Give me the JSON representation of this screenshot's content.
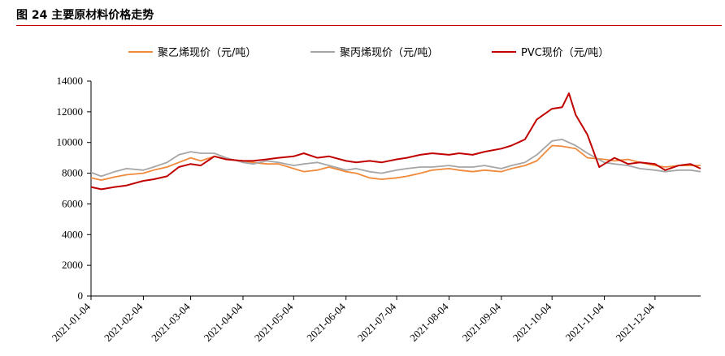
{
  "figure": {
    "title": "图 24 主要原材料价格走势"
  },
  "chart_data": {
    "type": "line",
    "title": "",
    "xlabel": "",
    "ylabel": "",
    "ylim": [
      0,
      14000
    ],
    "yticks": [
      0,
      2000,
      4000,
      6000,
      8000,
      10000,
      12000,
      14000
    ],
    "xlim": [
      "2021-01-04",
      "2021-12-31"
    ],
    "xticks": [
      "2021-01-04",
      "2021-02-04",
      "2021-03-04",
      "2021-04-04",
      "2021-05-04",
      "2021-06-04",
      "2021-07-04",
      "2021-08-04",
      "2021-09-04",
      "2021-10-04",
      "2021-11-04",
      "2021-12-04"
    ],
    "grid": false,
    "legend_position": "top",
    "series": [
      {
        "name": "聚乙烯现价（元/吨）",
        "color": "#f08a3c",
        "points": [
          [
            "2021-01-04",
            7700
          ],
          [
            "2021-01-10",
            7550
          ],
          [
            "2021-01-18",
            7750
          ],
          [
            "2021-01-25",
            7900
          ],
          [
            "2021-02-04",
            8000
          ],
          [
            "2021-02-10",
            8200
          ],
          [
            "2021-02-18",
            8400
          ],
          [
            "2021-02-25",
            8700
          ],
          [
            "2021-03-04",
            9000
          ],
          [
            "2021-03-10",
            8800
          ],
          [
            "2021-03-18",
            9100
          ],
          [
            "2021-03-25",
            8900
          ],
          [
            "2021-04-04",
            8800
          ],
          [
            "2021-04-10",
            8700
          ],
          [
            "2021-04-18",
            8600
          ],
          [
            "2021-04-25",
            8600
          ],
          [
            "2021-05-04",
            8300
          ],
          [
            "2021-05-10",
            8100
          ],
          [
            "2021-05-18",
            8200
          ],
          [
            "2021-05-25",
            8400
          ],
          [
            "2021-06-04",
            8100
          ],
          [
            "2021-06-10",
            8000
          ],
          [
            "2021-06-18",
            7700
          ],
          [
            "2021-06-25",
            7600
          ],
          [
            "2021-07-04",
            7700
          ],
          [
            "2021-07-10",
            7800
          ],
          [
            "2021-07-18",
            8000
          ],
          [
            "2021-07-25",
            8200
          ],
          [
            "2021-08-04",
            8300
          ],
          [
            "2021-08-10",
            8200
          ],
          [
            "2021-08-18",
            8100
          ],
          [
            "2021-08-25",
            8200
          ],
          [
            "2021-09-04",
            8100
          ],
          [
            "2021-09-10",
            8300
          ],
          [
            "2021-09-18",
            8500
          ],
          [
            "2021-09-25",
            8800
          ],
          [
            "2021-10-04",
            9800
          ],
          [
            "2021-10-10",
            9750
          ],
          [
            "2021-10-18",
            9600
          ],
          [
            "2021-10-25",
            9000
          ],
          [
            "2021-11-04",
            8900
          ],
          [
            "2021-11-10",
            8800
          ],
          [
            "2021-11-18",
            8900
          ],
          [
            "2021-11-25",
            8700
          ],
          [
            "2021-12-04",
            8500
          ],
          [
            "2021-12-10",
            8400
          ],
          [
            "2021-12-18",
            8500
          ],
          [
            "2021-12-25",
            8500
          ],
          [
            "2021-12-31",
            8500
          ]
        ]
      },
      {
        "name": "聚丙烯现价（元/吨）",
        "color": "#a6a6a6",
        "points": [
          [
            "2021-01-04",
            8050
          ],
          [
            "2021-01-10",
            7800
          ],
          [
            "2021-01-18",
            8100
          ],
          [
            "2021-01-25",
            8300
          ],
          [
            "2021-02-04",
            8200
          ],
          [
            "2021-02-10",
            8400
          ],
          [
            "2021-02-18",
            8700
          ],
          [
            "2021-02-25",
            9200
          ],
          [
            "2021-03-04",
            9400
          ],
          [
            "2021-03-10",
            9300
          ],
          [
            "2021-03-18",
            9300
          ],
          [
            "2021-03-25",
            9000
          ],
          [
            "2021-04-04",
            8700
          ],
          [
            "2021-04-10",
            8600
          ],
          [
            "2021-04-18",
            8800
          ],
          [
            "2021-04-25",
            8700
          ],
          [
            "2021-05-04",
            8500
          ],
          [
            "2021-05-10",
            8600
          ],
          [
            "2021-05-18",
            8700
          ],
          [
            "2021-05-25",
            8500
          ],
          [
            "2021-06-04",
            8200
          ],
          [
            "2021-06-10",
            8300
          ],
          [
            "2021-06-18",
            8100
          ],
          [
            "2021-06-25",
            8000
          ],
          [
            "2021-07-04",
            8200
          ],
          [
            "2021-07-10",
            8300
          ],
          [
            "2021-07-18",
            8400
          ],
          [
            "2021-07-25",
            8400
          ],
          [
            "2021-08-04",
            8500
          ],
          [
            "2021-08-10",
            8400
          ],
          [
            "2021-08-18",
            8400
          ],
          [
            "2021-08-25",
            8500
          ],
          [
            "2021-09-04",
            8300
          ],
          [
            "2021-09-10",
            8500
          ],
          [
            "2021-09-18",
            8700
          ],
          [
            "2021-09-25",
            9200
          ],
          [
            "2021-10-04",
            10100
          ],
          [
            "2021-10-10",
            10200
          ],
          [
            "2021-10-18",
            9800
          ],
          [
            "2021-10-25",
            9300
          ],
          [
            "2021-11-04",
            8700
          ],
          [
            "2021-11-10",
            8600
          ],
          [
            "2021-11-18",
            8500
          ],
          [
            "2021-11-25",
            8300
          ],
          [
            "2021-12-04",
            8200
          ],
          [
            "2021-12-10",
            8100
          ],
          [
            "2021-12-18",
            8200
          ],
          [
            "2021-12-25",
            8200
          ],
          [
            "2021-12-31",
            8100
          ]
        ]
      },
      {
        "name": "PVC现价（元/吨）",
        "color": "#c00000",
        "points": [
          [
            "2021-01-04",
            7100
          ],
          [
            "2021-01-10",
            6950
          ],
          [
            "2021-01-18",
            7100
          ],
          [
            "2021-01-25",
            7200
          ],
          [
            "2021-02-04",
            7500
          ],
          [
            "2021-02-10",
            7600
          ],
          [
            "2021-02-18",
            7800
          ],
          [
            "2021-02-25",
            8400
          ],
          [
            "2021-03-04",
            8600
          ],
          [
            "2021-03-10",
            8500
          ],
          [
            "2021-03-18",
            9100
          ],
          [
            "2021-03-25",
            8900
          ],
          [
            "2021-04-04",
            8800
          ],
          [
            "2021-04-10",
            8800
          ],
          [
            "2021-04-18",
            8900
          ],
          [
            "2021-04-25",
            9000
          ],
          [
            "2021-05-04",
            9100
          ],
          [
            "2021-05-10",
            9300
          ],
          [
            "2021-05-18",
            9000
          ],
          [
            "2021-05-25",
            9100
          ],
          [
            "2021-06-04",
            8800
          ],
          [
            "2021-06-10",
            8700
          ],
          [
            "2021-06-18",
            8800
          ],
          [
            "2021-06-25",
            8700
          ],
          [
            "2021-07-04",
            8900
          ],
          [
            "2021-07-10",
            9000
          ],
          [
            "2021-07-18",
            9200
          ],
          [
            "2021-07-25",
            9300
          ],
          [
            "2021-08-04",
            9200
          ],
          [
            "2021-08-10",
            9300
          ],
          [
            "2021-08-18",
            9200
          ],
          [
            "2021-08-25",
            9400
          ],
          [
            "2021-09-04",
            9600
          ],
          [
            "2021-09-10",
            9800
          ],
          [
            "2021-09-18",
            10200
          ],
          [
            "2021-09-25",
            11500
          ],
          [
            "2021-10-04",
            12200
          ],
          [
            "2021-10-10",
            12300
          ],
          [
            "2021-10-14",
            13200
          ],
          [
            "2021-10-18",
            11800
          ],
          [
            "2021-10-25",
            10500
          ],
          [
            "2021-11-01",
            8400
          ],
          [
            "2021-11-04",
            8600
          ],
          [
            "2021-11-10",
            9000
          ],
          [
            "2021-11-18",
            8600
          ],
          [
            "2021-11-25",
            8700
          ],
          [
            "2021-12-04",
            8600
          ],
          [
            "2021-12-10",
            8200
          ],
          [
            "2021-12-18",
            8500
          ],
          [
            "2021-12-25",
            8600
          ],
          [
            "2021-12-31",
            8300
          ]
        ]
      }
    ]
  }
}
